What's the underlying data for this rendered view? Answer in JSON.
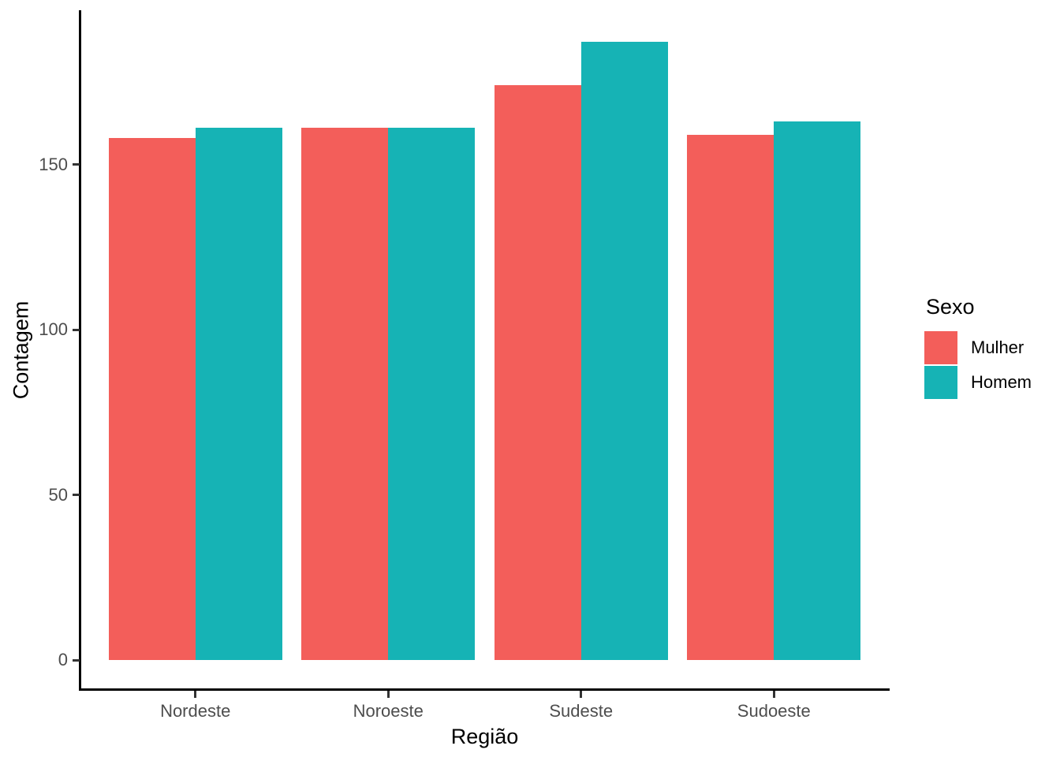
{
  "chart_data": {
    "type": "bar",
    "bar_layout": "dodge",
    "title": "",
    "xlabel": "Região",
    "ylabel": "Contagem",
    "categories": [
      "Nordeste",
      "Noroeste",
      "Sudeste",
      "Sudoeste"
    ],
    "series": [
      {
        "name": "Mulher",
        "color": "#F35E5A",
        "values": [
          158,
          161,
          174,
          159
        ]
      },
      {
        "name": "Homem",
        "color": "#16B3B5",
        "values": [
          161,
          161,
          187,
          163
        ]
      }
    ],
    "yticks": [
      0,
      50,
      100,
      150
    ],
    "ylim": [
      0,
      196
    ],
    "grid": false,
    "legend": {
      "title": "Sexo",
      "position": "right",
      "items": [
        {
          "label": "Mulher",
          "color": "#F35E5A"
        },
        {
          "label": "Homem",
          "color": "#16B3B5"
        }
      ]
    }
  },
  "colors": {
    "mulher": "#F35E5A",
    "homem": "#16B3B5",
    "axis_line": "#000000",
    "tick_mark": "#333333",
    "tick_label": "#4D4D4D",
    "axis_title": "#000000",
    "background": "#FFFFFF"
  }
}
